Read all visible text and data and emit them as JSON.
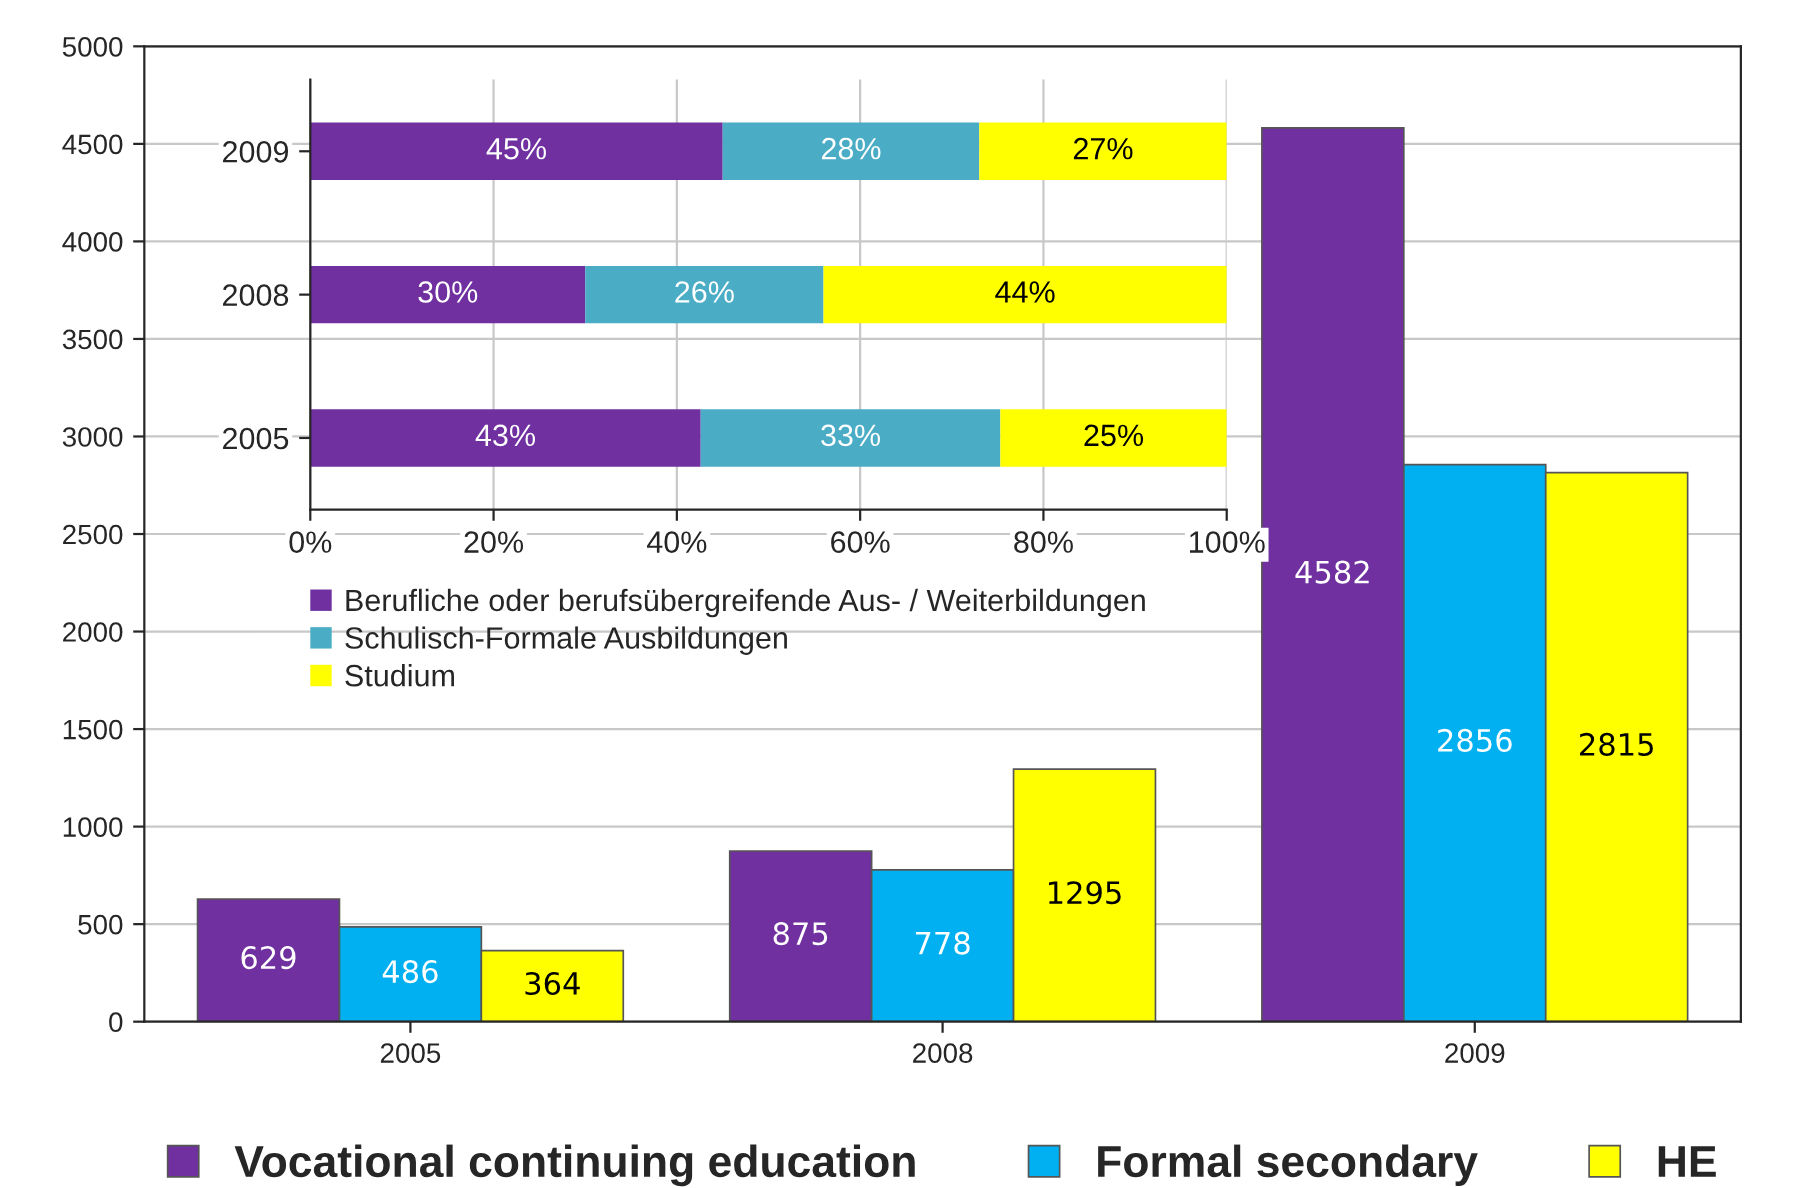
{
  "chart_data": [
    {
      "type": "bar",
      "categories": [
        "2005",
        "2008",
        "2009"
      ],
      "series": [
        {
          "name": "Vocational continuing education",
          "color": "#7030a0",
          "values": [
            629,
            875,
            4582
          ]
        },
        {
          "name": "Formal secondary",
          "color": "#00b0f0",
          "values": [
            486,
            778,
            2856
          ]
        },
        {
          "name": "HE",
          "color": "#ffff00",
          "values": [
            364,
            1295,
            2815
          ]
        }
      ],
      "ylim": [
        0,
        5000
      ],
      "yticks": [
        0,
        500,
        1000,
        1500,
        2000,
        2500,
        3000,
        3500,
        4000,
        4500,
        5000
      ],
      "grid": "y",
      "legend": "bottom",
      "data_labels": true
    },
    {
      "type": "bar",
      "orientation": "horizontal",
      "stacked": true,
      "categories": [
        "2009",
        "2008",
        "2005"
      ],
      "series": [
        {
          "name": "Berufliche oder berufsübergreifende Aus- / Weiterbildungen",
          "color": "#7030a0",
          "values": [
            45,
            30,
            42.6
          ],
          "value_labels": [
            "45%",
            "30%",
            "43%"
          ]
        },
        {
          "name": "Schulisch-Formale Ausbildungen",
          "color": "#4bacc6",
          "values": [
            28,
            26,
            32.7
          ],
          "value_labels": [
            "28%",
            "26%",
            "33%"
          ]
        },
        {
          "name": "Studium",
          "color": "#ffff00",
          "values": [
            27,
            44,
            24.7
          ],
          "value_labels": [
            "27%",
            "44%",
            "25%"
          ]
        }
      ],
      "xlim": [
        0,
        100
      ],
      "xticks": [
        {
          "value": 0,
          "label": "0%"
        },
        {
          "value": 20,
          "label": "20%"
        },
        {
          "value": 40,
          "label": "40%"
        },
        {
          "value": 60,
          "label": "60%"
        },
        {
          "value": 80,
          "label": "80%"
        },
        {
          "value": 100,
          "label": "100%"
        }
      ],
      "grid": "x",
      "legend": "bottom"
    }
  ]
}
